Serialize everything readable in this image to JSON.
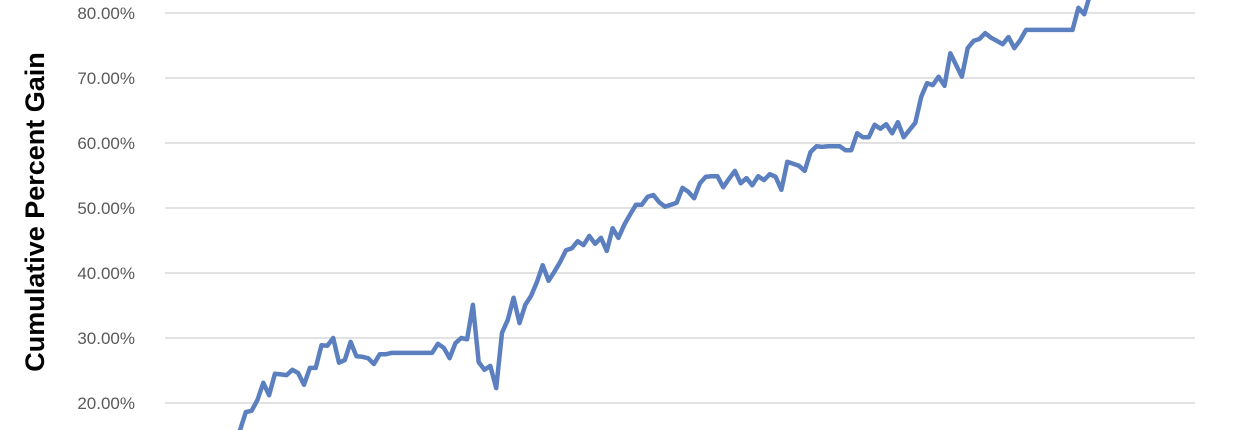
{
  "chart_data": {
    "type": "line",
    "title": "",
    "xlabel": "",
    "ylabel": "Cumulative Percent Gain",
    "ylim": [
      15,
      82
    ],
    "yticks": [
      20,
      30,
      40,
      50,
      60,
      70,
      80
    ],
    "ytick_labels": [
      "20.00%",
      "30.00%",
      "40.00%",
      "50.00%",
      "60.00%",
      "70.00%",
      "80.00%"
    ],
    "grid": "horizontal",
    "line_color": "#5b7fbf",
    "grid_color": "#d9d9d9",
    "series": [
      {
        "values": [
          15.8,
          18.6,
          18.8,
          20.5,
          23.1,
          21.2,
          24.5,
          24.4,
          24.3,
          25.1,
          24.6,
          22.8,
          25.4,
          25.4,
          28.9,
          28.8,
          30.0,
          26.2,
          26.6,
          29.4,
          27.2,
          27.1,
          26.9,
          26.0,
          27.5,
          27.5,
          27.7,
          27.7,
          27.7,
          27.7,
          27.7,
          27.7,
          27.7,
          27.7,
          29.1,
          28.5,
          26.9,
          29.2,
          30.0,
          29.8,
          35.1,
          26.3,
          25.1,
          25.7,
          22.3,
          30.8,
          32.8,
          36.2,
          32.3,
          35.1,
          36.5,
          38.6,
          41.2,
          38.8,
          40.2,
          41.7,
          43.5,
          43.8,
          44.9,
          44.3,
          45.7,
          44.5,
          45.4,
          43.4,
          46.9,
          45.4,
          47.4,
          49.0,
          50.5,
          50.5,
          51.7,
          52.0,
          50.9,
          50.2,
          50.5,
          50.8,
          53.1,
          52.5,
          51.5,
          53.8,
          54.8,
          54.9,
          54.9,
          53.2,
          54.5,
          55.7,
          53.8,
          54.6,
          53.5,
          54.9,
          54.3,
          55.2,
          54.8,
          52.8,
          57.1,
          56.8,
          56.5,
          55.7,
          58.6,
          59.5,
          59.4,
          59.5,
          59.5,
          59.5,
          58.9,
          58.9,
          61.5,
          60.9,
          60.9,
          62.8,
          62.2,
          62.9,
          61.5,
          63.2,
          60.9,
          62.0,
          63.1,
          67.1,
          69.2,
          68.9,
          70.2,
          68.8,
          73.8,
          72.0,
          70.2,
          74.6,
          75.7,
          76.0,
          76.9,
          76.2,
          75.7,
          75.2,
          76.3,
          74.6,
          75.8,
          77.4,
          77.4,
          77.4,
          77.4,
          77.4,
          77.4,
          77.4,
          77.4,
          77.4,
          80.8,
          79.8,
          82.8
        ]
      }
    ]
  }
}
